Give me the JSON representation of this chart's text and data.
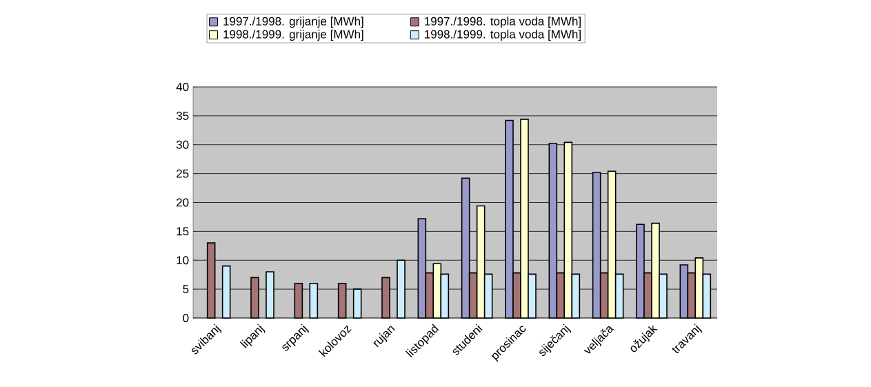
{
  "chart_data": {
    "type": "bar",
    "categories": [
      "svibanj",
      "lipanj",
      "srpanj",
      "kolovoz",
      "rujan",
      "listopad",
      "studeni",
      "prosinac",
      "siječanj",
      "veljača",
      "ožujak",
      "travanj"
    ],
    "series": [
      {
        "name": "1997./1998. grijanje [MWh]",
        "color": "#9999cc",
        "values": [
          null,
          null,
          null,
          null,
          null,
          17.2,
          24.2,
          34.2,
          30.2,
          25.2,
          16.2,
          9.2
        ]
      },
      {
        "name": "1997./1998. topla voda [MWh]",
        "color": "#a57474",
        "values": [
          13,
          7,
          6,
          6,
          7,
          7.8,
          7.8,
          7.8,
          7.8,
          7.8,
          7.8,
          7.8
        ]
      },
      {
        "name": "1998./1999. grijanje [MWh]",
        "color": "#ffffcc",
        "values": [
          null,
          null,
          null,
          null,
          null,
          9.4,
          19.4,
          34.4,
          30.4,
          25.4,
          16.4,
          10.4
        ]
      },
      {
        "name": "1998./1999. topla voda [MWh]",
        "color": "#ccecff",
        "values": [
          9,
          8,
          6,
          5,
          10,
          7.6,
          7.6,
          7.6,
          7.6,
          7.6,
          7.6,
          7.6
        ]
      }
    ],
    "ylim": [
      0,
      40
    ],
    "yticks": [
      0,
      5,
      10,
      15,
      20,
      25,
      30,
      35,
      40
    ],
    "grid": "y",
    "legend": "top"
  }
}
